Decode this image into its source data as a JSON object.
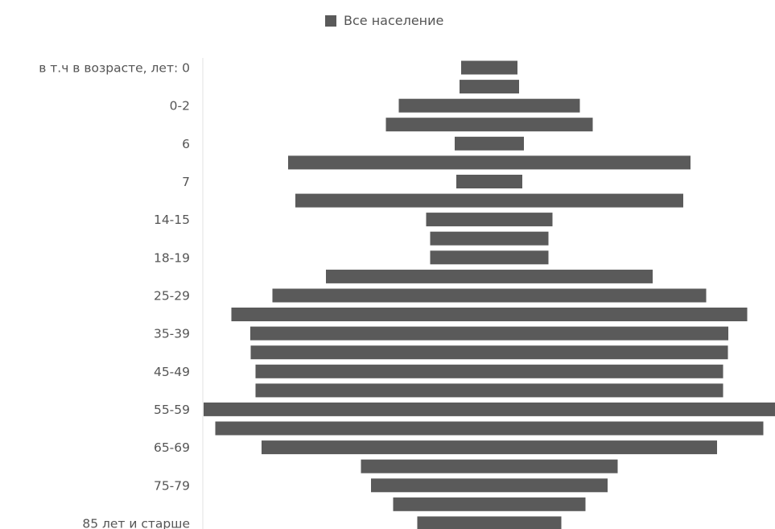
{
  "chart_data": {
    "type": "bar",
    "orientation": "horizontal-centered",
    "legend": {
      "position": "top",
      "entries": [
        "Все население"
      ]
    },
    "series": [
      {
        "name": "Все население",
        "color": "#5a5a5a",
        "values": [
          70,
          74,
          225,
          257,
          86,
          500,
          82,
          482,
          157,
          147,
          147,
          406,
          539,
          641,
          594,
          593,
          581,
          581,
          710,
          681,
          566,
          319,
          294,
          239,
          179
        ]
      }
    ],
    "categories": [
      "в т.ч в возрасте, лет: 0",
      "",
      "0-2",
      "",
      "6",
      "",
      "7",
      "",
      "14-15",
      "",
      "18-19",
      "",
      "25-29",
      "",
      "35-39",
      "",
      "45-49",
      "",
      "55-59",
      "",
      "65-69",
      "",
      "75-79",
      "",
      "85 лет и старше"
    ],
    "grid": false
  }
}
